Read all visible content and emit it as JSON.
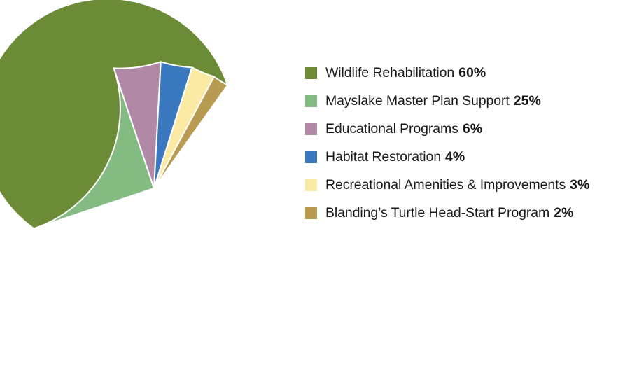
{
  "chart_data": {
    "type": "pie",
    "slices": [
      {
        "label": "Wildlife Rehabilitation",
        "value": 60,
        "value_label": "60%",
        "color": "#6b8b37"
      },
      {
        "label": "Mayslake Master Plan Support",
        "value": 25,
        "value_label": "25%",
        "color": "#84bb82"
      },
      {
        "label": "Educational Programs",
        "value": 6,
        "value_label": "6%",
        "color": "#b189a7"
      },
      {
        "label": "Habitat Restoration",
        "value": 4,
        "value_label": "4%",
        "color": "#3a78c0"
      },
      {
        "label": "Recreational Amenities & Improvements",
        "value": 3,
        "value_label": "3%",
        "color": "#fbeaa3"
      },
      {
        "label": "Blanding’s Turtle Head-Start Program",
        "value": 2,
        "value_label": "2%",
        "color": "#b89b50"
      }
    ],
    "legend_position": "right",
    "title": ""
  }
}
